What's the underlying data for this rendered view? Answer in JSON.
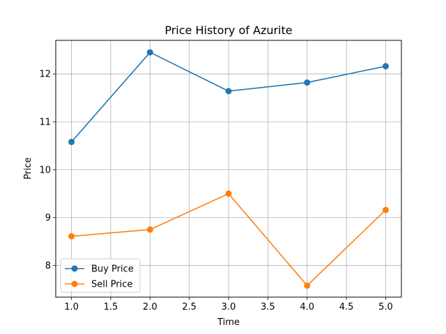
{
  "chart_data": {
    "type": "line",
    "title": "Price History of Azurite",
    "xlabel": "Time",
    "ylabel": "Price",
    "x": [
      1,
      2,
      3,
      4,
      5
    ],
    "xlim": [
      0.8,
      5.2
    ],
    "ylim": [
      7.34,
      12.7
    ],
    "xticks": [
      "1.0",
      "1.5",
      "2.0",
      "2.5",
      "3.0",
      "3.5",
      "4.0",
      "4.5",
      "5.0"
    ],
    "yticks": [
      "8",
      "9",
      "10",
      "11",
      "12"
    ],
    "grid": true,
    "legend_position": "lower-left",
    "series": [
      {
        "name": "Buy Price",
        "color": "#1f77b4",
        "values": [
          10.58,
          12.45,
          11.64,
          11.82,
          12.16
        ]
      },
      {
        "name": "Sell Price",
        "color": "#ff7f0e",
        "values": [
          8.61,
          8.75,
          9.5,
          7.58,
          9.16
        ]
      }
    ]
  }
}
